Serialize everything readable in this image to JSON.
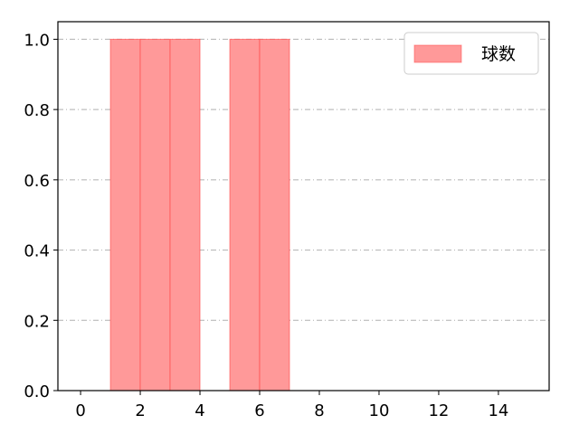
{
  "chart_data": {
    "type": "bar",
    "bins": [
      {
        "x0": 1,
        "x1": 2,
        "value": 1
      },
      {
        "x0": 2,
        "x1": 3,
        "value": 1
      },
      {
        "x0": 3,
        "x1": 4,
        "value": 1
      },
      {
        "x0": 5,
        "x1": 6,
        "value": 1
      },
      {
        "x0": 6,
        "x1": 7,
        "value": 1
      }
    ],
    "series": [
      {
        "name": "球数"
      }
    ],
    "xlim": [
      -0.76,
      15.7
    ],
    "ylim": [
      0,
      1.05
    ],
    "xticks": [
      "0",
      "2",
      "4",
      "6",
      "8",
      "10",
      "12",
      "14"
    ],
    "yticks": [
      "0.0",
      "0.2",
      "0.4",
      "0.6",
      "0.8",
      "1.0"
    ],
    "grid": "y, dash-dot",
    "legend": "top-right",
    "colors": {
      "bar_fill": "#ff9999",
      "bar_edge": "#ff4444",
      "grid": "#b0b0b0"
    },
    "title": "",
    "xlabel": "",
    "ylabel": ""
  }
}
